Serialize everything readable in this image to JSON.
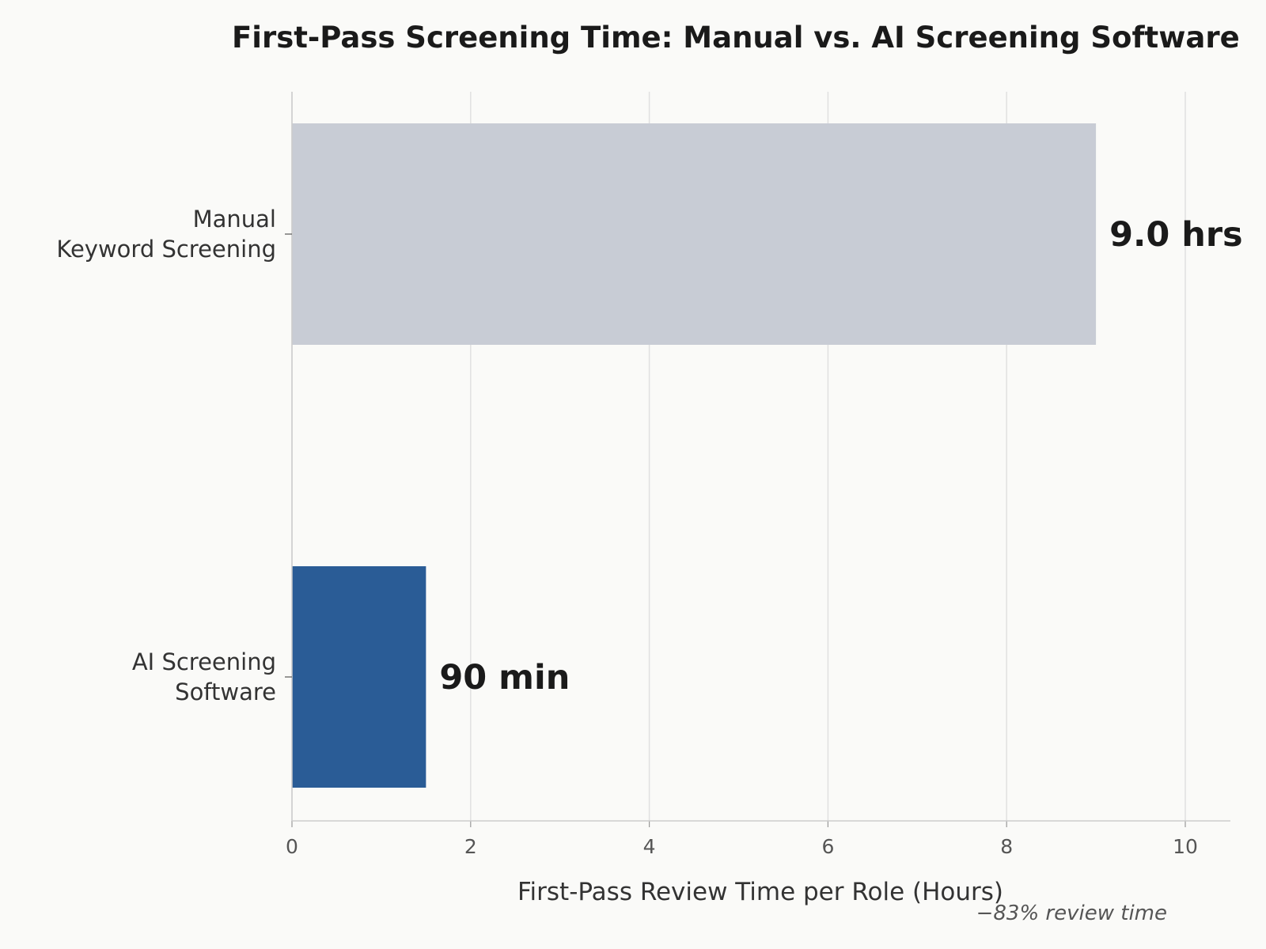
{
  "chart_data": {
    "type": "bar",
    "orientation": "horizontal",
    "title": "First-Pass Screening Time: Manual vs. AI Screening Software",
    "xlabel": "First-Pass Review Time per Role (Hours)",
    "ylabel": "",
    "xlim": [
      0,
      10.5
    ],
    "xticks": [
      0,
      2,
      4,
      6,
      8,
      10
    ],
    "grid": "vertical",
    "categories": [
      [
        "Manual",
        "Keyword Screening"
      ],
      [
        "AI Screening",
        "Software"
      ]
    ],
    "values": [
      9.0,
      1.5
    ],
    "value_labels": [
      "9.0 hrs",
      "90 min"
    ],
    "colors": [
      "#c8ccd5",
      "#2a5c96"
    ],
    "annotation": "−83% review time"
  }
}
